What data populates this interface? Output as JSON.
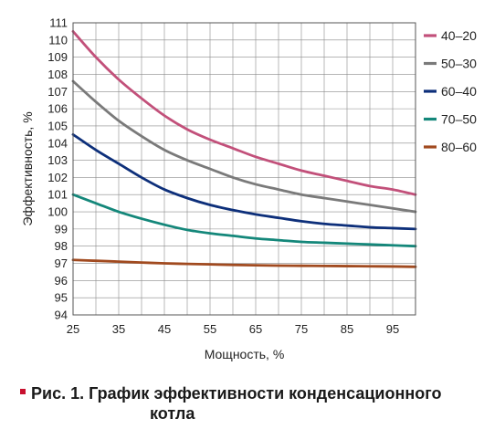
{
  "chart_data": {
    "type": "line",
    "title": "",
    "xlabel": "Мощность, %",
    "ylabel": "Эффективность, %",
    "xlim": [
      25,
      100
    ],
    "ylim": [
      94,
      111
    ],
    "xticks": [
      25,
      35,
      45,
      55,
      65,
      75,
      85,
      95
    ],
    "yticks": [
      94,
      95,
      96,
      97,
      98,
      99,
      100,
      101,
      102,
      103,
      104,
      105,
      106,
      107,
      108,
      109,
      110,
      111
    ],
    "grid": true,
    "legend_position": "right",
    "x": [
      25,
      30,
      35,
      40,
      45,
      50,
      55,
      60,
      65,
      70,
      75,
      80,
      85,
      90,
      95,
      100
    ],
    "series": [
      {
        "name": "40–20",
        "color": "#c2507a",
        "values": [
          110.5,
          109.0,
          107.7,
          106.6,
          105.6,
          104.8,
          104.2,
          103.7,
          103.2,
          102.8,
          102.4,
          102.1,
          101.8,
          101.5,
          101.3,
          101.0
        ]
      },
      {
        "name": "50–30",
        "color": "#7a7a7a",
        "values": [
          107.6,
          106.4,
          105.3,
          104.4,
          103.6,
          103.0,
          102.5,
          102.0,
          101.6,
          101.3,
          101.0,
          100.8,
          100.6,
          100.4,
          100.2,
          100.0
        ]
      },
      {
        "name": "60–40",
        "color": "#0d2f7a",
        "values": [
          104.5,
          103.6,
          102.8,
          102.0,
          101.3,
          100.8,
          100.4,
          100.1,
          99.85,
          99.65,
          99.45,
          99.3,
          99.2,
          99.1,
          99.05,
          99.0
        ]
      },
      {
        "name": "70–50",
        "color": "#14877a",
        "values": [
          101.0,
          100.5,
          100.0,
          99.6,
          99.25,
          98.95,
          98.75,
          98.6,
          98.45,
          98.35,
          98.25,
          98.2,
          98.15,
          98.1,
          98.05,
          98.0
        ]
      },
      {
        "name": "80–60",
        "color": "#a14a1f",
        "values": [
          97.2,
          97.15,
          97.1,
          97.05,
          97.0,
          96.97,
          96.94,
          96.91,
          96.89,
          96.87,
          96.86,
          96.85,
          96.84,
          96.83,
          96.82,
          96.8
        ]
      }
    ]
  },
  "caption": {
    "line1": "Рис. 1. График эффективности конденсационного",
    "line2": "котла"
  }
}
